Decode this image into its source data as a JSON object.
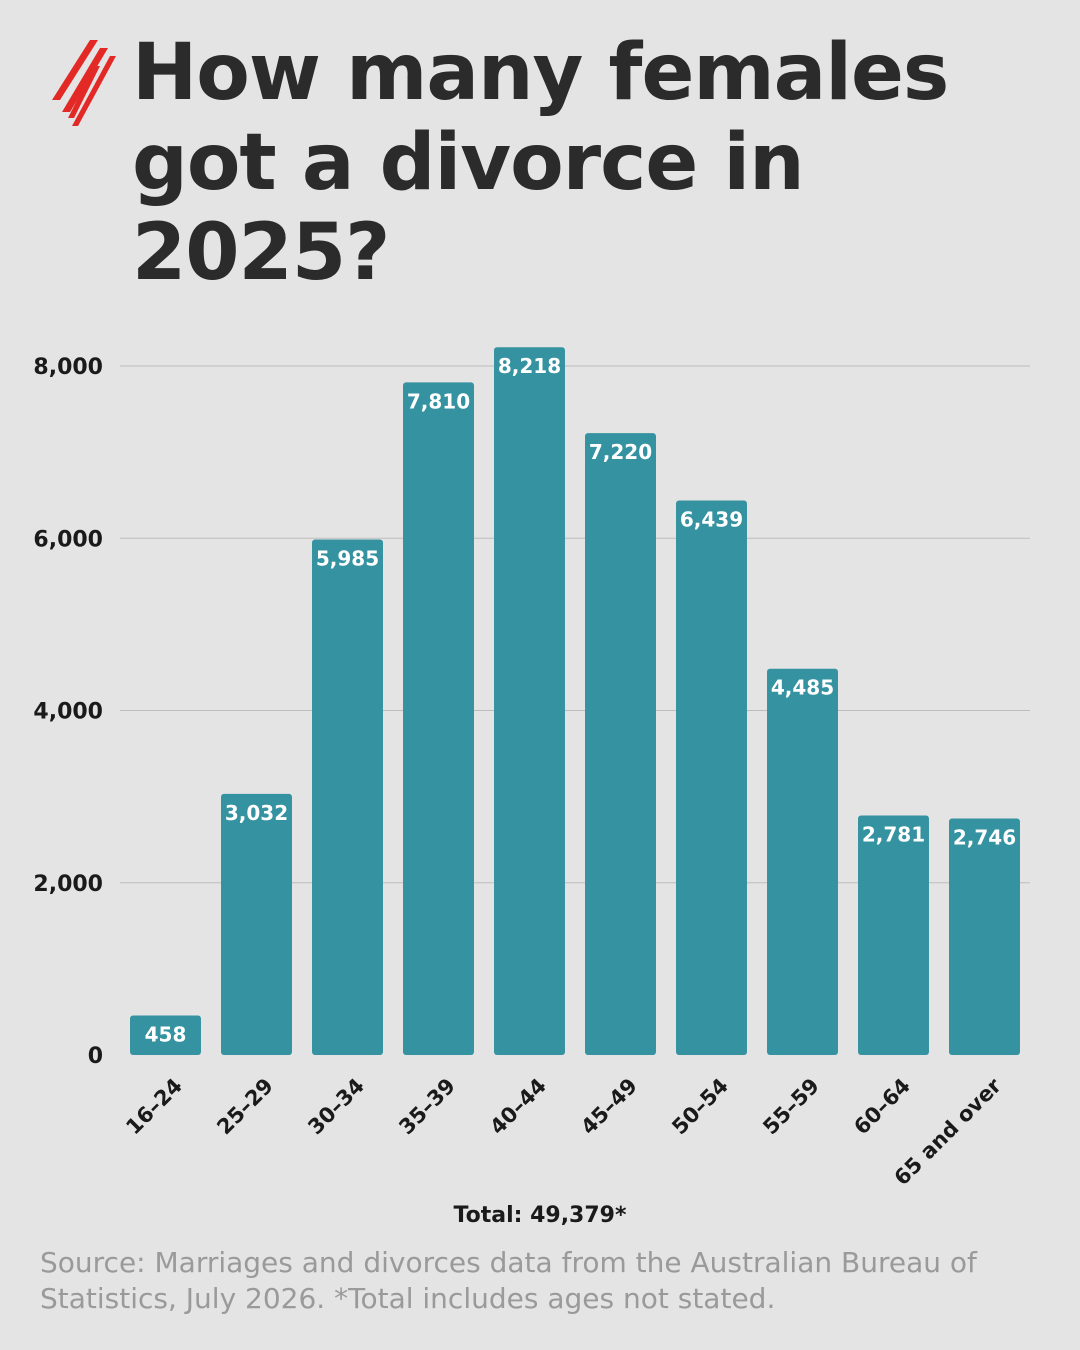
{
  "header": {
    "title": "How many females got a divorce in 2025?",
    "logo_icon": "sbs-logo-icon"
  },
  "colors": {
    "background": "#e4e4e4",
    "bar": "#3592a0",
    "logo": "#e32926",
    "title": "#2b2b2b",
    "source": "#9a9a9a"
  },
  "chart_data": {
    "type": "bar",
    "categories": [
      "16–24",
      "25–29",
      "30–34",
      "35–39",
      "40–44",
      "45–49",
      "50–54",
      "55–59",
      "60–64",
      "65 and over"
    ],
    "values": [
      458,
      3032,
      5985,
      7810,
      8218,
      7220,
      6439,
      4485,
      2781,
      2746
    ],
    "value_labels": [
      "458",
      "3,032",
      "5,985",
      "7,810",
      "8,218",
      "7,220",
      "6,439",
      "4,485",
      "2,781",
      "2,746"
    ],
    "ylim": [
      0,
      8000
    ],
    "yticks": [
      0,
      2000,
      4000,
      6000,
      8000
    ],
    "ytick_labels": [
      "0",
      "2,000",
      "4,000",
      "6,000",
      "8,000"
    ],
    "grid": true,
    "xlabel": "",
    "ylabel": ""
  },
  "footer": {
    "total": "Total: 49,379*",
    "source": "Source: Marriages and divorces data from the Australian Bureau of Statistics, July 2026. *Total includes ages not stated."
  }
}
